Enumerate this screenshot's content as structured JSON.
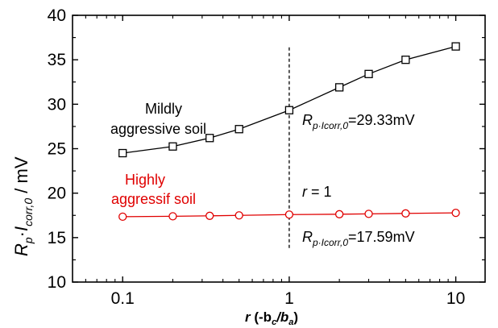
{
  "chart_data": {
    "type": "line",
    "x_scale": "log",
    "xlim": [
      0.05,
      15
    ],
    "ylim": [
      10,
      40
    ],
    "x_ticks": [
      0.1,
      1,
      10
    ],
    "x_tick_labels": [
      "0.1",
      "1",
      "10"
    ],
    "y_ticks": [
      10,
      15,
      20,
      25,
      30,
      35,
      40
    ],
    "y_tick_labels": [
      "10",
      "15",
      "20",
      "25",
      "30",
      "35",
      "40"
    ],
    "grid": false,
    "legend": "none",
    "xlabel": {
      "italic_var": "r",
      "prefix": " (-b",
      "sub1": "c",
      "mid": "/b",
      "sub2": "a",
      "suffix": ")"
    },
    "ylabel": {
      "var1": "R",
      "sub1": "p",
      "dot": "·",
      "var2": "I",
      "sub2": "corr,0",
      "suffix": " / mV"
    },
    "series": [
      {
        "label_lines": [
          "Mildly",
          "aggressive soil"
        ],
        "color": "#000000",
        "marker": "square",
        "x": [
          0.1,
          0.2,
          0.333,
          0.5,
          1,
          2,
          3,
          5,
          10
        ],
        "y": [
          24.5,
          25.25,
          26.2,
          27.2,
          29.33,
          31.9,
          33.4,
          35.0,
          36.5
        ]
      },
      {
        "label_lines": [
          "Highly",
          "aggressif soil"
        ],
        "color": "#e00000",
        "marker": "circle",
        "x": [
          0.1,
          0.2,
          0.333,
          0.5,
          1,
          2,
          3,
          5,
          10
        ],
        "y": [
          17.35,
          17.4,
          17.45,
          17.5,
          17.59,
          17.63,
          17.67,
          17.72,
          17.78
        ]
      }
    ],
    "reference_line": {
      "x": 1,
      "style": "dashed",
      "label_var": "r",
      "label_rest": " = 1"
    },
    "annotations": [
      {
        "var": "R",
        "sub": "p·Icorr,0",
        "text": "=29.33mV"
      },
      {
        "var": "R",
        "sub": "p·Icorr,0",
        "text": "=17.59mV"
      }
    ]
  }
}
